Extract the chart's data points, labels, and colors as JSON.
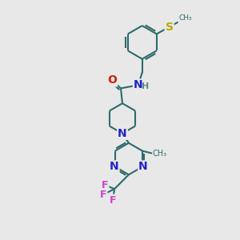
{
  "bg_color": "#e8e8e8",
  "bond_color": "#2d6b6b",
  "bond_width": 1.5,
  "atom_colors": {
    "N": "#2222cc",
    "O": "#cc2200",
    "S": "#bbaa00",
    "F": "#cc44cc",
    "C": "#2d6b6b",
    "H": "#5a8a8a"
  },
  "font_size": 9
}
